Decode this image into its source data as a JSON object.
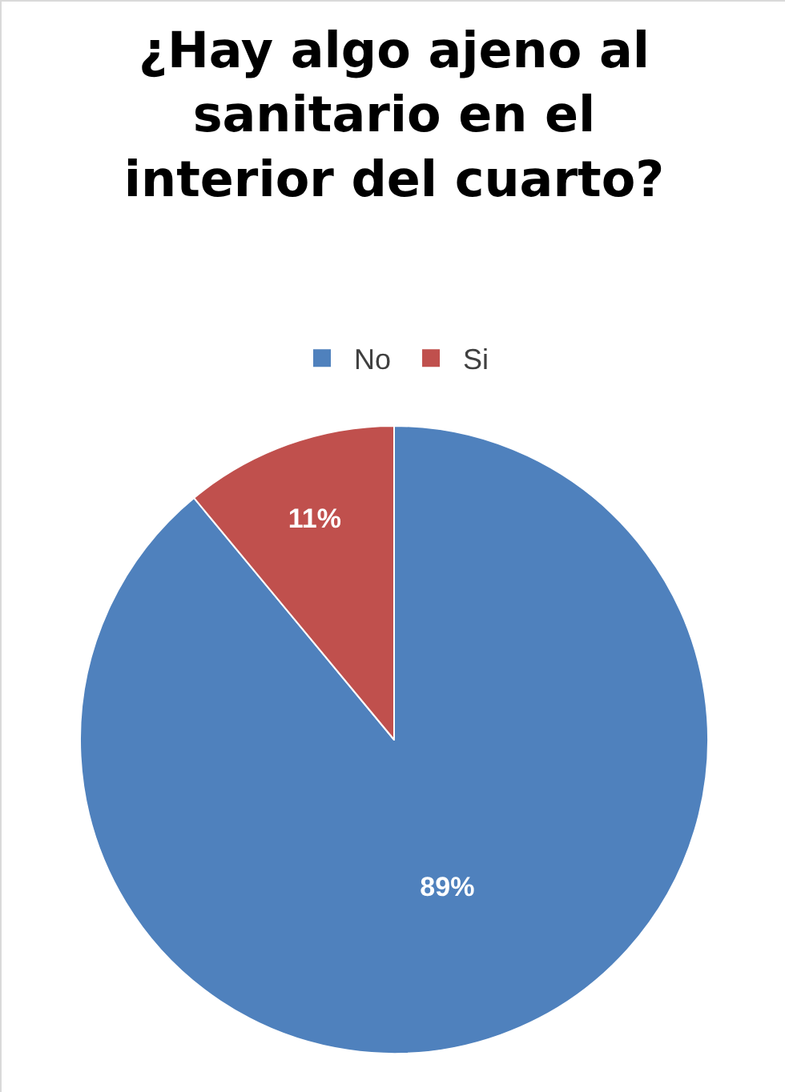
{
  "chart_data": {
    "type": "pie",
    "title": "¿Hay algo ajeno al\nsanitario en el\ninterior del cuarto?",
    "categories": [
      "No",
      "Si"
    ],
    "values": [
      89,
      11
    ],
    "colors": [
      "#4f81bd",
      "#c0504d"
    ],
    "value_labels": [
      "89%",
      "11%"
    ],
    "legend": "top"
  }
}
